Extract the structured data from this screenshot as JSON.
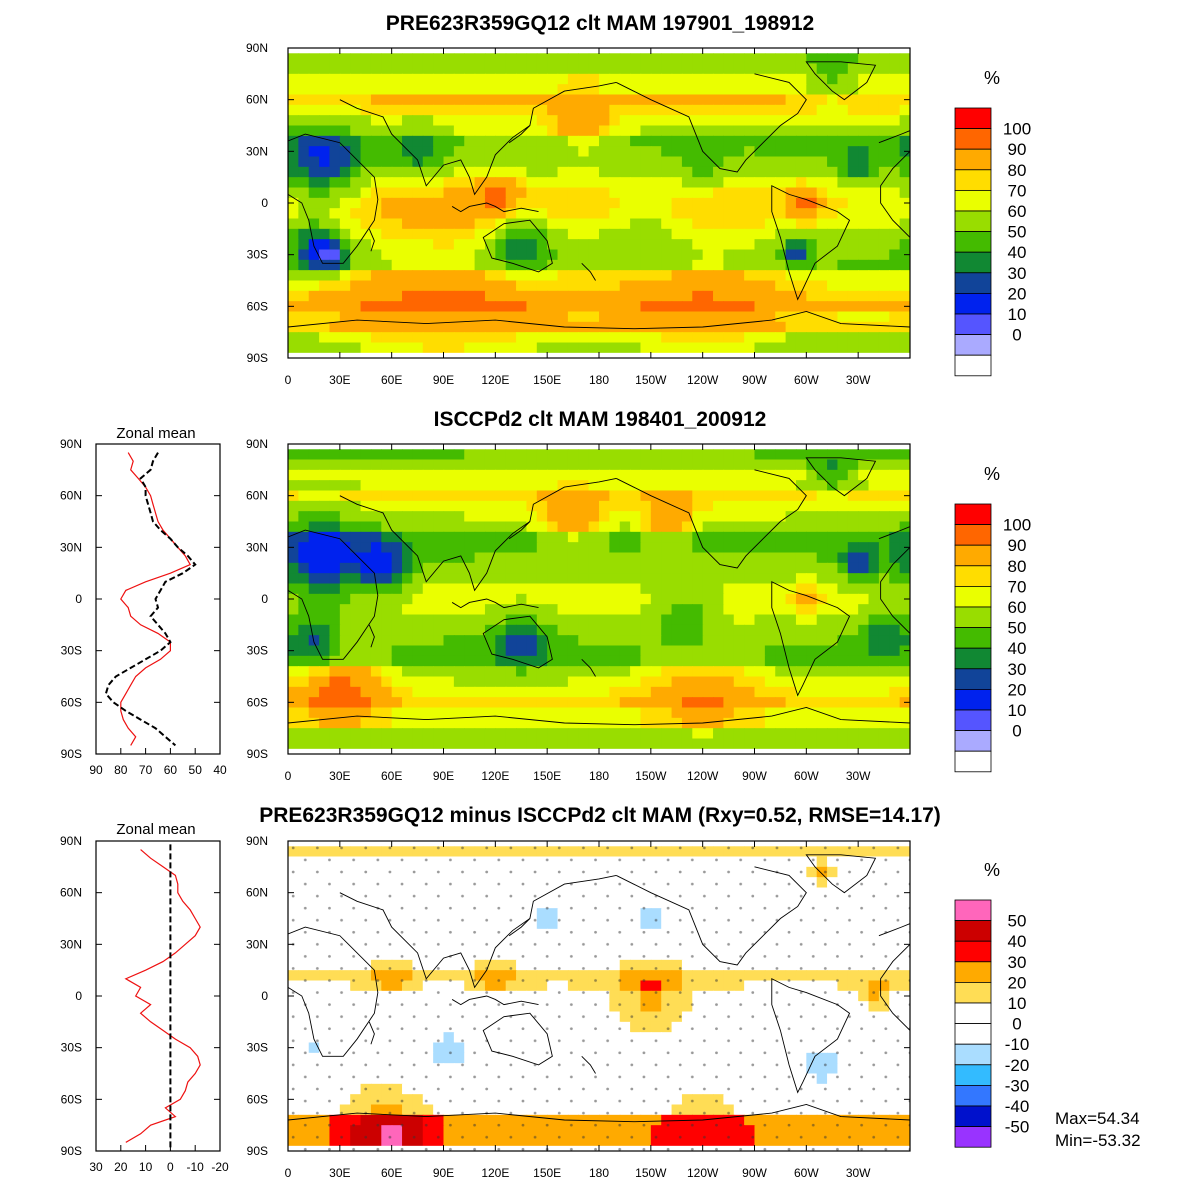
{
  "chart_data": [
    {
      "id": "top",
      "type": "heatmap",
      "title": "PRE623R359GQ12 clt MAM 197901_198912",
      "unit_label": "%",
      "xticks": [
        "0",
        "30E",
        "60E",
        "90E",
        "120E",
        "150E",
        "180",
        "150W",
        "120W",
        "90W",
        "60W",
        "30W"
      ],
      "yticks": [
        "90N",
        "60N",
        "30N",
        "0",
        "30S",
        "60S",
        "90S"
      ],
      "colorbar": {
        "labels": [
          "100",
          "90",
          "80",
          "70",
          "60",
          "50",
          "40",
          "30",
          "20",
          "10",
          "0"
        ],
        "colors": [
          "#ff0000",
          "#ff6600",
          "#ffaa00",
          "#ffdd00",
          "#eaff00",
          "#99dd00",
          "#44bb00",
          "#118833",
          "#114499",
          "#0022ee",
          "#5555ff",
          "#aaaaff",
          "#ffffff"
        ]
      },
      "base": 66,
      "features": [
        {
          "lon": 20,
          "lat": 25,
          "r": 22,
          "v": -35
        },
        {
          "lon": 75,
          "lat": 30,
          "r": 15,
          "v": -20
        },
        {
          "lon": 15,
          "lat": -25,
          "r": 14,
          "v": -28
        },
        {
          "lon": 25,
          "lat": -30,
          "r": 10,
          "v": -35
        },
        {
          "lon": 135,
          "lat": -25,
          "r": 16,
          "v": -28
        },
        {
          "lon": -65,
          "lat": -28,
          "r": 8,
          "v": -35
        },
        {
          "lon": -60,
          "lat": 0,
          "r": 10,
          "v": 18
        },
        {
          "lon": 170,
          "lat": 42,
          "r": 18,
          "v": 16
        },
        {
          "lon": 120,
          "lat": 5,
          "r": 12,
          "v": 14
        },
        {
          "lon": 90,
          "lat": -55,
          "r": 70,
          "v": 16
        },
        {
          "lon": -120,
          "lat": -55,
          "r": 55,
          "v": 14
        },
        {
          "lon": -120,
          "lat": 20,
          "r": 12,
          "v": -12
        },
        {
          "lon": -30,
          "lat": 22,
          "r": 10,
          "v": -25
        },
        {
          "lon": -45,
          "lat": 72,
          "r": 12,
          "v": -15
        },
        {
          "lon": -150,
          "lat": -15,
          "r": 20,
          "v": -8
        }
      ]
    },
    {
      "id": "middle",
      "type": "heatmap",
      "title": "ISCCPd2 clt MAM 198401_200912",
      "unit_label": "%",
      "xticks": [
        "0",
        "30E",
        "60E",
        "90E",
        "120E",
        "150E",
        "180",
        "150W",
        "120W",
        "90W",
        "60W",
        "30W"
      ],
      "yticks": [
        "90N",
        "60N",
        "30N",
        "0",
        "30S",
        "60S",
        "90S"
      ],
      "colorbar": {
        "labels": [
          "100",
          "90",
          "80",
          "70",
          "60",
          "50",
          "40",
          "30",
          "20",
          "10",
          "0"
        ],
        "colors": [
          "#ff0000",
          "#ff6600",
          "#ffaa00",
          "#ffdd00",
          "#eaff00",
          "#99dd00",
          "#44bb00",
          "#118833",
          "#114499",
          "#0022ee",
          "#5555ff",
          "#aaaaff",
          "#ffffff"
        ]
      },
      "base": 64,
      "features": [
        {
          "lon": 20,
          "lat": 22,
          "r": 25,
          "v": -38
        },
        {
          "lon": 55,
          "lat": 20,
          "r": 15,
          "v": -35
        },
        {
          "lon": 15,
          "lat": -25,
          "r": 14,
          "v": -25
        },
        {
          "lon": 135,
          "lat": -25,
          "r": 16,
          "v": -25
        },
        {
          "lon": 165,
          "lat": 45,
          "r": 18,
          "v": 20
        },
        {
          "lon": -140,
          "lat": 45,
          "r": 15,
          "v": 18
        },
        {
          "lon": -130,
          "lat": -10,
          "r": 18,
          "v": -18
        },
        {
          "lon": -15,
          "lat": -20,
          "r": 12,
          "v": -20
        },
        {
          "lon": 30,
          "lat": -50,
          "r": 25,
          "v": 22
        },
        {
          "lon": -120,
          "lat": -50,
          "r": 35,
          "v": 14
        },
        {
          "lon": -30,
          "lat": 20,
          "r": 10,
          "v": -30
        },
        {
          "lon": -45,
          "lat": 72,
          "r": 12,
          "v": -18
        },
        {
          "lon": -60,
          "lat": 0,
          "r": 10,
          "v": 12
        }
      ]
    },
    {
      "id": "bottom",
      "type": "heatmap",
      "title": "PRE623R359GQ12 minus ISCCPd2 clt MAM (Rxy=0.52, RMSE=14.17)",
      "unit_label": "%",
      "xticks": [
        "0",
        "30E",
        "60E",
        "90E",
        "120E",
        "150E",
        "180",
        "150W",
        "120W",
        "90W",
        "60W",
        "30W"
      ],
      "yticks": [
        "90N",
        "60N",
        "30N",
        "0",
        "30S",
        "60S",
        "90S"
      ],
      "colorbar": {
        "labels": [
          "50",
          "40",
          "30",
          "20",
          "10",
          "0",
          "-10",
          "-20",
          "-30",
          "-40",
          "-50"
        ],
        "colors": [
          "#ff66bb",
          "#cc0000",
          "#ff0000",
          "#ffaa00",
          "#ffdd55",
          "#ffffff",
          "#ffffff",
          "#aaddff",
          "#33bbff",
          "#3377ff",
          "#0011cc",
          "#9933ff"
        ]
      },
      "base": 0,
      "features": [
        {
          "lon": -150,
          "lat": 0,
          "r": 25,
          "v": 22
        },
        {
          "lon": -20,
          "lat": 0,
          "r": 10,
          "v": 22
        },
        {
          "lon": 60,
          "lat": 10,
          "r": 12,
          "v": 20
        },
        {
          "lon": 120,
          "lat": 10,
          "r": 15,
          "v": 15
        },
        {
          "lon": 60,
          "lat": -80,
          "r": 30,
          "v": 30
        },
        {
          "lon": -120,
          "lat": -80,
          "r": 35,
          "v": 15
        },
        {
          "lon": -50,
          "lat": 72,
          "r": 8,
          "v": 25
        },
        {
          "lon": 150,
          "lat": 45,
          "r": 18,
          "v": -12
        },
        {
          "lon": -150,
          "lat": 45,
          "r": 18,
          "v": -12
        },
        {
          "lon": -50,
          "lat": -40,
          "r": 15,
          "v": -14
        },
        {
          "lon": 90,
          "lat": -35,
          "r": 30,
          "v": -12
        },
        {
          "lon": 15,
          "lat": -30,
          "r": 10,
          "v": -12
        }
      ],
      "stats": {
        "max": "Max=54.34",
        "min": "Min=-53.32"
      }
    }
  ],
  "zonal_mean": [
    {
      "id": "zm-middle",
      "label": "Zonal mean",
      "x_ticks": [
        "90",
        "80",
        "70",
        "60",
        "50",
        "40"
      ],
      "xlim": [
        90,
        40
      ],
      "y_ticks": [
        "90N",
        "60N",
        "30N",
        "0",
        "30S",
        "60S",
        "90S"
      ],
      "series": [
        {
          "style": "solid",
          "color": "#ee1111",
          "lat": [
            85,
            80,
            75,
            70,
            65,
            60,
            55,
            50,
            45,
            40,
            35,
            30,
            25,
            20,
            15,
            10,
            5,
            0,
            -5,
            -10,
            -15,
            -20,
            -25,
            -30,
            -35,
            -40,
            -45,
            -50,
            -55,
            -60,
            -65,
            -70,
            -75,
            -80,
            -85
          ],
          "values": [
            77,
            75,
            76,
            73,
            70,
            68,
            67,
            66,
            65,
            63,
            60,
            57,
            54,
            52,
            60,
            70,
            78,
            80,
            77,
            76,
            72,
            65,
            60,
            60,
            64,
            70,
            74,
            76,
            78,
            80,
            80,
            79,
            77,
            74,
            76
          ]
        },
        {
          "style": "dashed",
          "color": "#000000",
          "lat": [
            85,
            80,
            75,
            70,
            65,
            60,
            55,
            50,
            45,
            40,
            35,
            30,
            25,
            20,
            15,
            10,
            5,
            0,
            -5,
            -10,
            -15,
            -20,
            -25,
            -30,
            -35,
            -40,
            -45,
            -50,
            -55,
            -60,
            -65,
            -70,
            -75,
            -80,
            -85
          ],
          "values": [
            65,
            67,
            68,
            72,
            70,
            70,
            69,
            68,
            67,
            64,
            60,
            57,
            53,
            50,
            55,
            62,
            64,
            66,
            65,
            68,
            65,
            62,
            60,
            64,
            70,
            76,
            82,
            85,
            86,
            83,
            78,
            72,
            66,
            62,
            58
          ]
        }
      ]
    },
    {
      "id": "zm-bottom",
      "label": "Zonal mean",
      "x_ticks": [
        "30",
        "20",
        "10",
        "0",
        "-10",
        "-20"
      ],
      "xlim": [
        30,
        -20
      ],
      "y_ticks": [
        "90N",
        "60N",
        "30N",
        "0",
        "30S",
        "60S",
        "90S"
      ],
      "series": [
        {
          "style": "solid",
          "color": "#ee1111",
          "lat": [
            85,
            80,
            75,
            70,
            65,
            60,
            55,
            50,
            45,
            40,
            35,
            30,
            25,
            20,
            15,
            10,
            5,
            0,
            -5,
            -10,
            -15,
            -20,
            -25,
            -30,
            -35,
            -40,
            -45,
            -50,
            -55,
            -60,
            -65,
            -70,
            -75,
            -80,
            -85
          ],
          "values": [
            12,
            8,
            3,
            -2,
            -3,
            -3,
            -5,
            -8,
            -10,
            -12,
            -10,
            -6,
            -2,
            3,
            10,
            18,
            12,
            14,
            8,
            12,
            8,
            3,
            -2,
            -8,
            -11,
            -12,
            -10,
            -7,
            -6,
            -4,
            2,
            -2,
            8,
            12,
            18
          ]
        },
        {
          "style": "dashed",
          "color": "#000000",
          "lat": [
            88,
            -88
          ],
          "values": [
            0,
            0
          ]
        }
      ]
    }
  ]
}
